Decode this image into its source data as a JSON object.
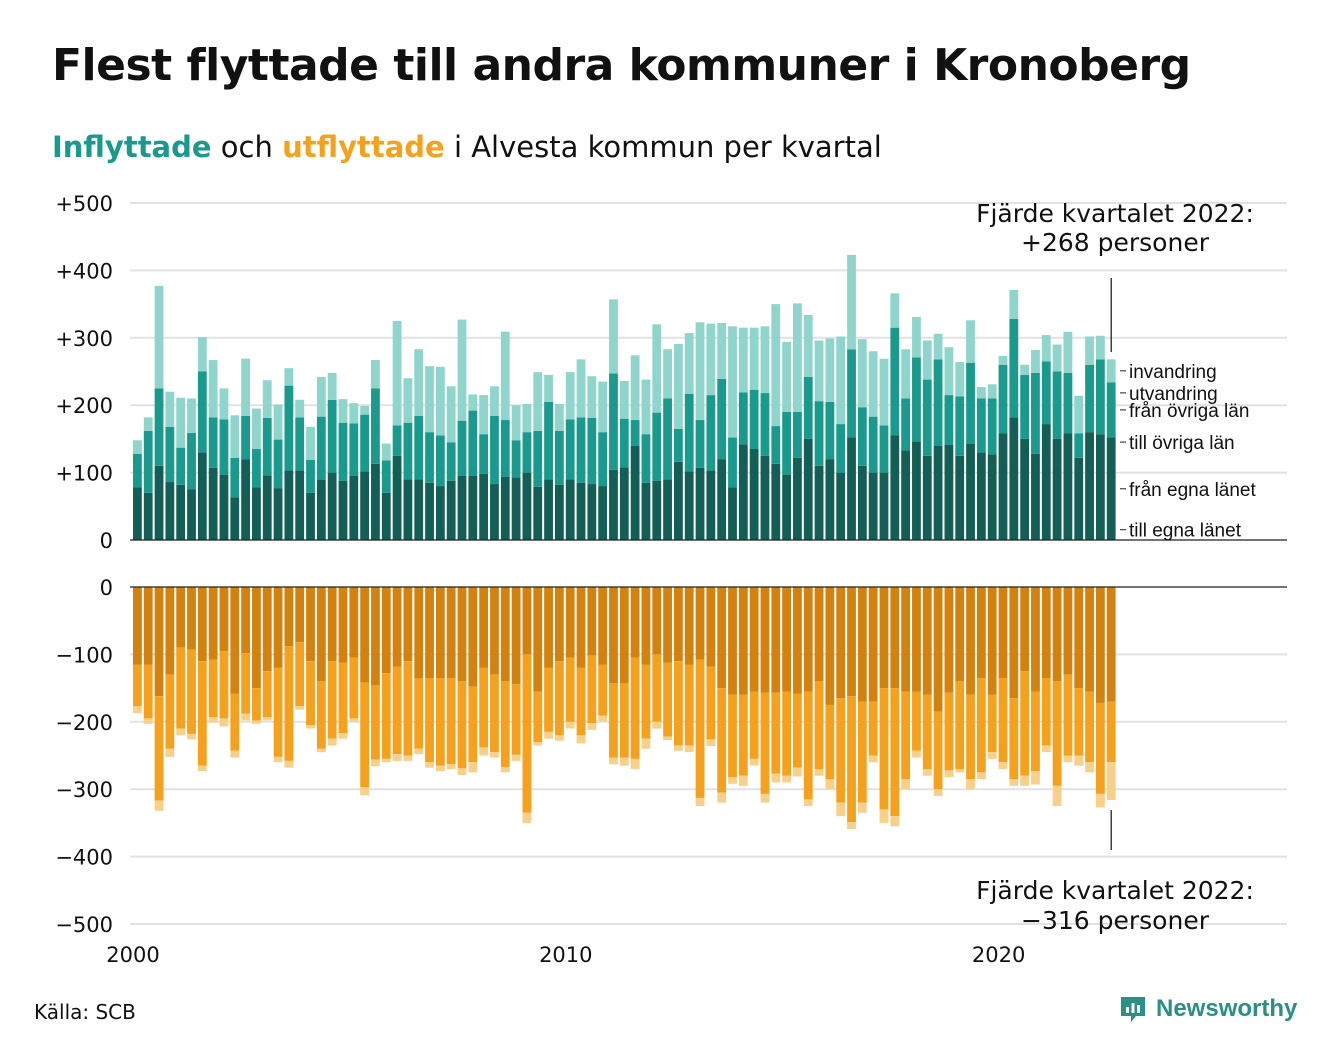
{
  "title": "Flest flyttade till andra kommuner i Kronoberg",
  "subtitle": {
    "in_word": "Inflyttade",
    "and_word": "och",
    "out_word": "utflyttade",
    "rest": "i Alvesta kommun per kvartal"
  },
  "source": "Källa: SCB",
  "brand": "Newsworthy",
  "colors": {
    "in_own": "#135f55",
    "in_other": "#1a9a8c",
    "in_immigration": "#8fd5cc",
    "out_own": "#d4820f",
    "out_other": "#f5a11d",
    "out_emigration": "#f9d08a",
    "brand": "#2a8f84"
  },
  "chart_data": [
    {
      "type": "bar",
      "stacked": true,
      "x_tick_labels": [
        "2000",
        "2010",
        "2020"
      ],
      "y_tick_labels": [
        "+500",
        "+400",
        "+300",
        "+200",
        "+100",
        "0"
      ],
      "ylim": [
        0,
        500
      ],
      "grid": true,
      "annotation": [
        "Fjärde kvartalet 2022:",
        "+268 personer"
      ],
      "series": [
        {
          "name": "från egna länet",
          "values": [
            78,
            70,
            110,
            86,
            82,
            75,
            130,
            107,
            97,
            63,
            120,
            78,
            96,
            77,
            103,
            103,
            70,
            89,
            100,
            88,
            95,
            102,
            113,
            70,
            125,
            90,
            90,
            85,
            80,
            88,
            95,
            95,
            98,
            83,
            94,
            93,
            100,
            79,
            90,
            82,
            90,
            85,
            83,
            80,
            104,
            108,
            140,
            85,
            88,
            90,
            116,
            102,
            107,
            103,
            120,
            78,
            142,
            135,
            125,
            113,
            97,
            122,
            150,
            110,
            120,
            100,
            152,
            110,
            100,
            100,
            155,
            133,
            146,
            125,
            140,
            141,
            125,
            143,
            130,
            127,
            158,
            182,
            150,
            128,
            172,
            150,
            158,
            122,
            160,
            157,
            152
          ],
          "stack_tops": [
            128,
            162,
            225,
            168,
            137,
            159,
            250,
            182,
            179,
            122,
            184,
            135,
            181,
            149,
            229,
            182,
            119,
            183,
            208,
            174,
            173,
            186,
            225,
            118,
            170,
            174,
            184,
            160,
            155,
            145,
            177,
            192,
            157,
            184,
            178,
            148,
            160,
            162,
            205,
            162,
            179,
            182,
            181,
            160,
            247,
            180,
            178,
            157,
            189,
            210,
            165,
            217,
            178,
            215,
            239,
            152,
            219,
            223,
            218,
            169,
            190,
            190,
            242,
            206,
            205,
            172,
            283,
            197,
            183,
            170,
            315,
            210,
            271,
            238,
            268,
            215,
            213,
            263,
            210,
            210,
            260,
            328,
            245,
            248,
            265,
            250,
            248,
            158,
            260,
            268,
            234
          ],
          "component": "own"
        },
        {
          "name": "från övriga län",
          "values": [
            50,
            92,
            115,
            82,
            55,
            84,
            120,
            75,
            82,
            59,
            64,
            57,
            85,
            72,
            126,
            79,
            49,
            94,
            108,
            86,
            78,
            84,
            112,
            48,
            45,
            84,
            94,
            75,
            75,
            57,
            82,
            97,
            59,
            101,
            84,
            55,
            60,
            83,
            115,
            80,
            89,
            97,
            98,
            80,
            143,
            72,
            38,
            72,
            101,
            120,
            49,
            115,
            71,
            112,
            119,
            74,
            77,
            88,
            93,
            56,
            93,
            68,
            92,
            96,
            85,
            72,
            131,
            87,
            83,
            70,
            160,
            77,
            125,
            113,
            128,
            74,
            88,
            120,
            80,
            83,
            102,
            146,
            95,
            120,
            93,
            100,
            90,
            36,
            100,
            111,
            82
          ],
          "component": "other"
        },
        {
          "name": "invandring",
          "values": [
            20,
            20,
            152,
            52,
            74,
            51,
            51,
            85,
            46,
            63,
            85,
            60,
            56,
            52,
            26,
            26,
            49,
            59,
            40,
            35,
            30,
            13,
            42,
            25,
            155,
            66,
            99,
            98,
            102,
            83,
            150,
            24,
            58,
            44,
            131,
            52,
            42,
            87,
            40,
            40,
            70,
            86,
            62,
            75,
            110,
            56,
            96,
            81,
            131,
            73,
            126,
            90,
            145,
            106,
            83,
            165,
            96,
            92,
            99,
            181,
            104,
            161,
            92,
            90,
            94,
            130,
            140,
            101,
            97,
            99,
            51,
            73,
            60,
            58,
            38,
            71,
            51,
            63,
            17,
            21,
            13,
            43,
            15,
            34,
            39,
            40,
            61,
            56,
            42,
            35,
            34
          ],
          "component": "immigration"
        }
      ],
      "series_labels": [
        "invandring",
        "från övriga län",
        "från egna länet"
      ]
    },
    {
      "type": "bar",
      "stacked": true,
      "y_tick_labels": [
        "0",
        "−100",
        "−200",
        "−300",
        "−400",
        "−500"
      ],
      "ylim": [
        -500,
        0
      ],
      "grid": true,
      "annotation": [
        "Fjärde kvartalet 2022:",
        "−316 personer"
      ],
      "series": [
        {
          "name": "till egna länet",
          "values": [
            -115,
            -115,
            -162,
            -130,
            -90,
            -93,
            -110,
            -108,
            -95,
            -158,
            -98,
            -150,
            -125,
            -120,
            -88,
            -82,
            -110,
            -140,
            -110,
            -112,
            -105,
            -142,
            -146,
            -128,
            -118,
            -110,
            -136,
            -135,
            -135,
            -135,
            -140,
            -148,
            -120,
            -130,
            -140,
            -144,
            -100,
            -155,
            -120,
            -110,
            -105,
            -120,
            -102,
            -115,
            -143,
            -143,
            -105,
            -115,
            -100,
            -112,
            -110,
            -115,
            -108,
            -118,
            -150,
            -160,
            -160,
            -155,
            -157,
            -157,
            -155,
            -158,
            -155,
            -140,
            -175,
            -165,
            -162,
            -170,
            -170,
            -150,
            -150,
            -155,
            -155,
            -160,
            -185,
            -157,
            -140,
            -160,
            -135,
            -160,
            -135,
            -165,
            -125,
            -155,
            -135,
            -140,
            -130,
            -150,
            -155,
            -172,
            -170
          ],
          "component": "own"
        },
        {
          "name": "till övriga län",
          "values": [
            -62,
            -80,
            -155,
            -110,
            -120,
            -125,
            -155,
            -85,
            -100,
            -85,
            -90,
            -48,
            -68,
            -132,
            -170,
            -95,
            -95,
            -100,
            -115,
            -105,
            -90,
            -155,
            -110,
            -127,
            -130,
            -140,
            -104,
            -125,
            -130,
            -128,
            -129,
            -112,
            -118,
            -115,
            -127,
            -105,
            -235,
            -75,
            -95,
            -110,
            -95,
            -100,
            -100,
            -76,
            -110,
            -110,
            -150,
            -110,
            -100,
            -110,
            -125,
            -120,
            -205,
            -108,
            -155,
            -122,
            -120,
            -100,
            -150,
            -120,
            -125,
            -110,
            -160,
            -130,
            -110,
            -155,
            -187,
            -150,
            -80,
            -180,
            -190,
            -130,
            -88,
            -110,
            -115,
            -115,
            -130,
            -125,
            -140,
            -85,
            -125,
            -120,
            -155,
            -118,
            -100,
            -155,
            -120,
            -100,
            -105,
            -135,
            -90
          ],
          "component": "other"
        },
        {
          "name": "utvandring",
          "values": [
            -10,
            -8,
            -15,
            -12,
            -10,
            -8,
            -8,
            -8,
            -12,
            -10,
            -10,
            -5,
            -5,
            -8,
            -10,
            -5,
            -5,
            -5,
            -10,
            -8,
            -5,
            -12,
            -10,
            -5,
            -10,
            -8,
            -8,
            -8,
            -8,
            -7,
            -10,
            -15,
            -12,
            -8,
            -8,
            -9,
            -15,
            -5,
            -10,
            -8,
            -10,
            -12,
            -10,
            -8,
            -10,
            -12,
            -15,
            -15,
            -10,
            -5,
            -8,
            -10,
            -12,
            -10,
            -15,
            -10,
            -15,
            -10,
            -13,
            -13,
            -10,
            -13,
            -10,
            -10,
            -15,
            -20,
            -10,
            -15,
            -10,
            -20,
            -15,
            -15,
            -10,
            -10,
            -10,
            -10,
            -5,
            -15,
            -10,
            -10,
            -10,
            -10,
            -15,
            -20,
            -10,
            -30,
            -10,
            -15,
            -15,
            -20,
            -56
          ],
          "component": "emigration"
        }
      ],
      "series_labels": [
        "till egna länet",
        "till övriga län",
        "utvandring"
      ]
    }
  ]
}
